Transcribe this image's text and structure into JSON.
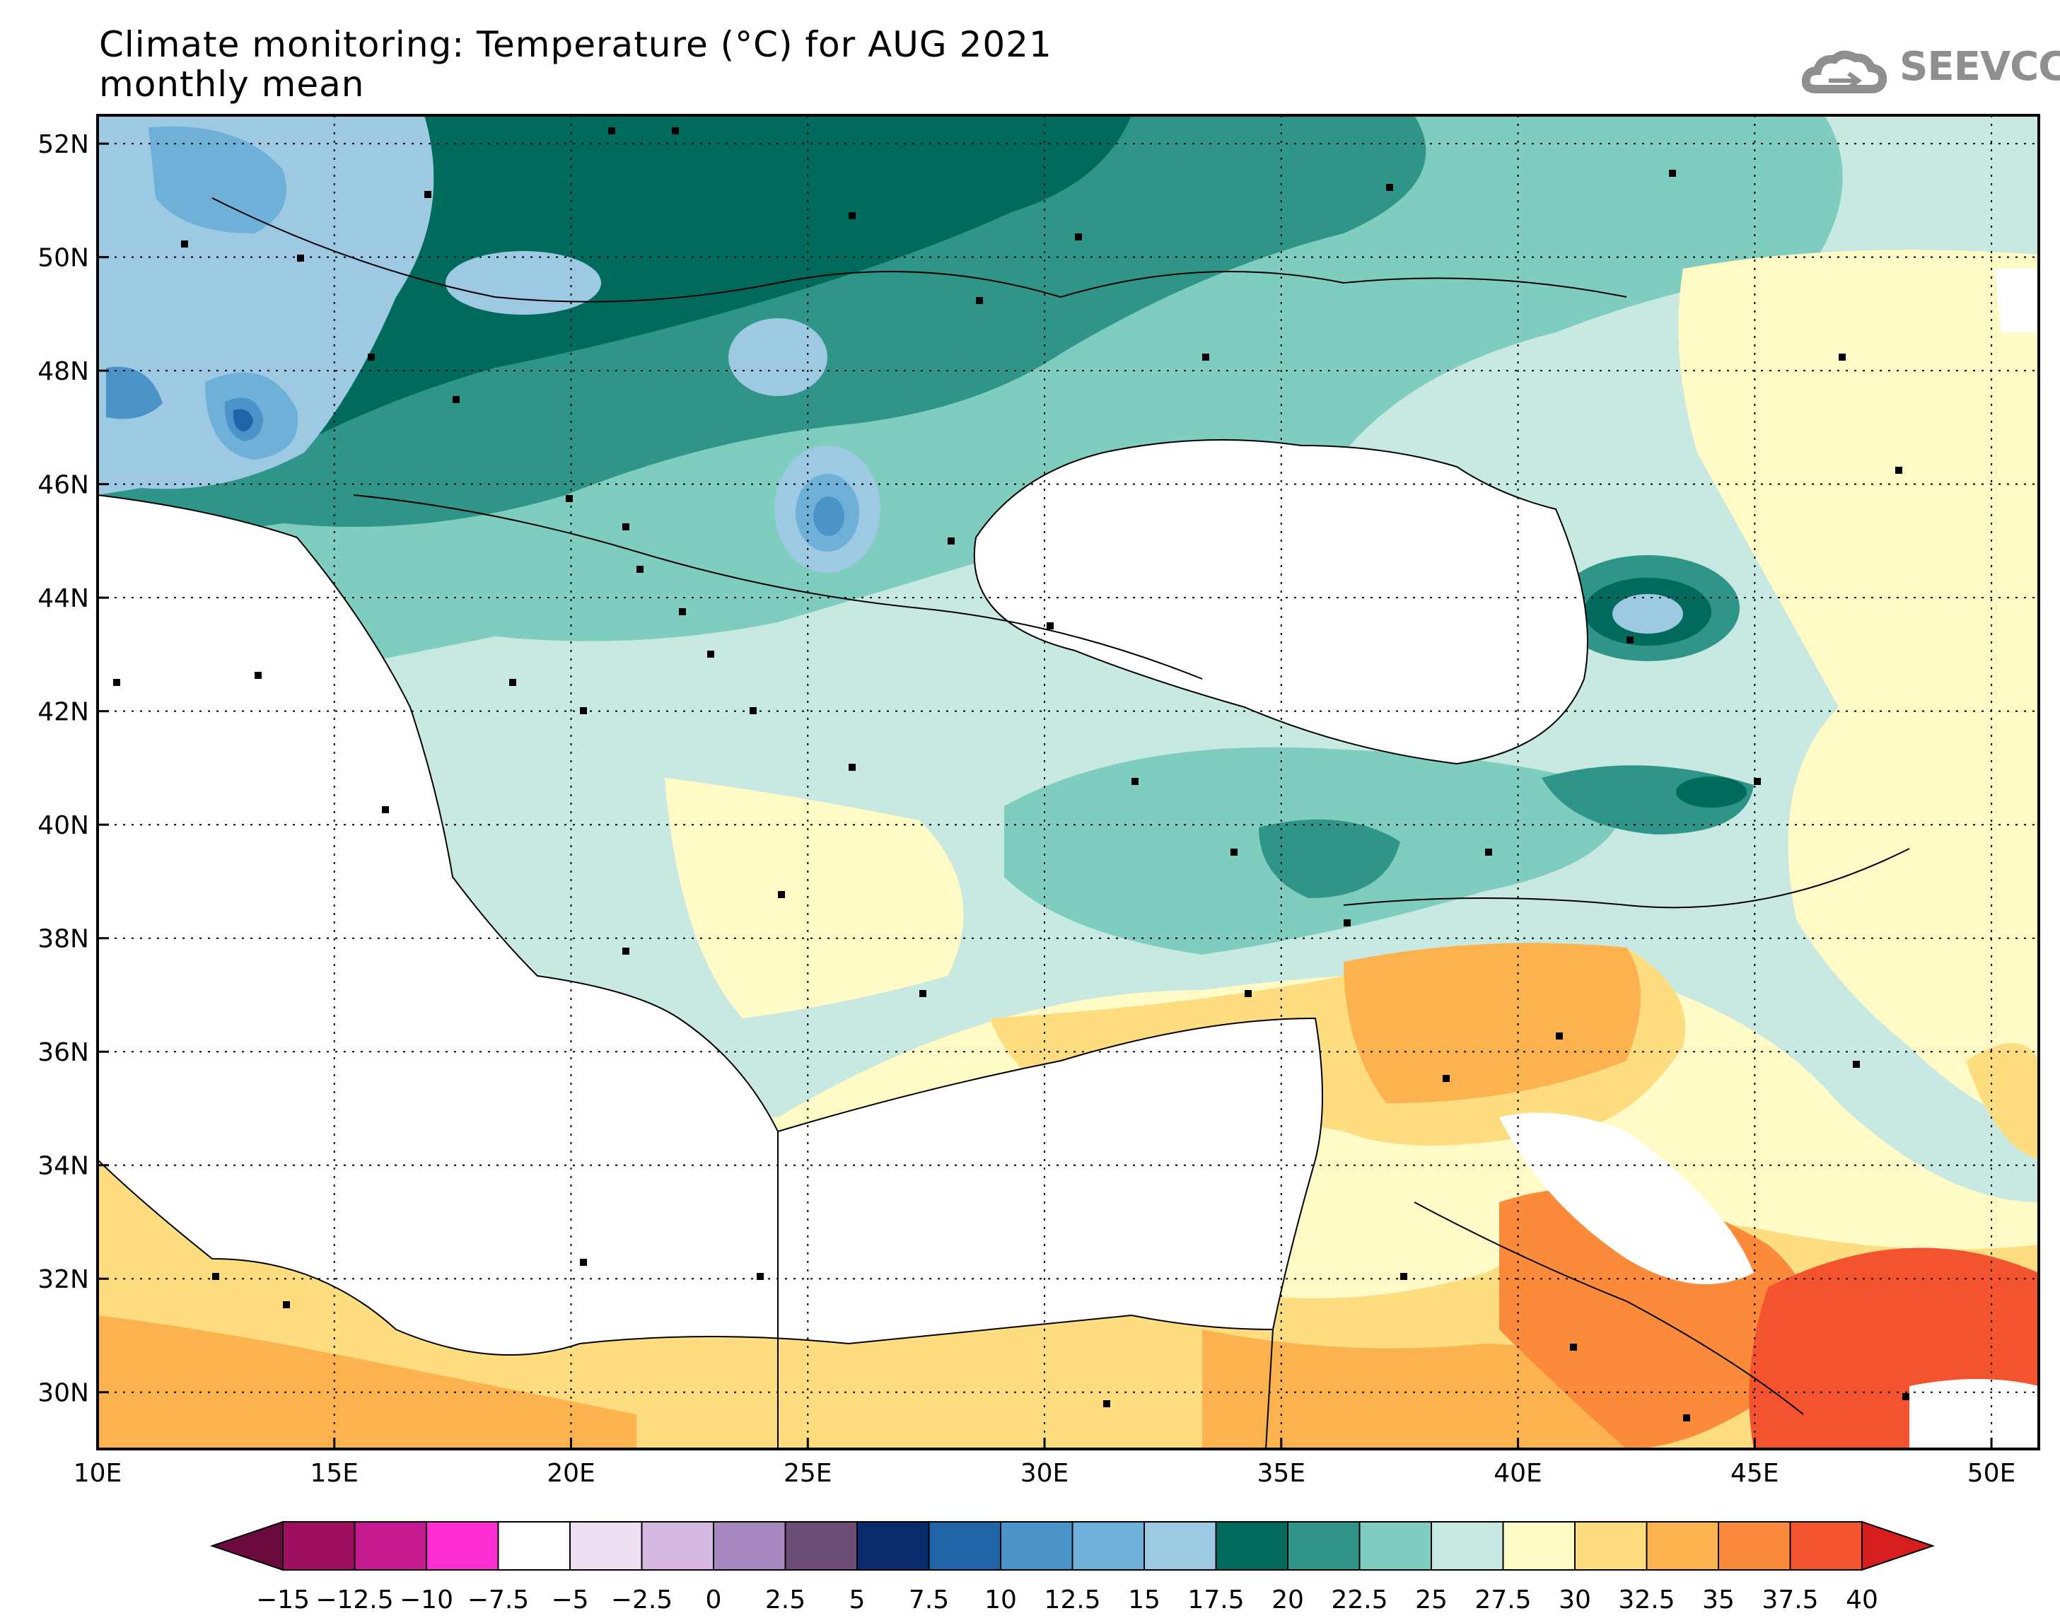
{
  "title": {
    "line1": "Climate monitoring: Temperature (°C) for AUG 2021",
    "line2": "monthly mean"
  },
  "logo": {
    "text": "SEEVCCC",
    "icon": "cloud-icon"
  },
  "map": {
    "projection": "lat-lon",
    "lon_range": [
      10,
      51
    ],
    "lat_range": [
      29,
      52.5
    ],
    "lon_ticks": [
      "10E",
      "15E",
      "20E",
      "25E",
      "30E",
      "35E",
      "40E",
      "45E",
      "50E"
    ],
    "lat_ticks": [
      "30N",
      "32N",
      "34N",
      "36N",
      "38N",
      "40N",
      "42N",
      "44N",
      "46N",
      "48N",
      "50N",
      "52N"
    ],
    "grid": "dotted",
    "background_land_fill": "#c3e6e0",
    "masked_areas_color": "#ffffff"
  },
  "colorbar": {
    "labels": [
      "−15",
      "−12.5",
      "−10",
      "−7.5",
      "−5",
      "−2.5",
      "0",
      "2.5",
      "5",
      "7.5",
      "10",
      "12.5",
      "15",
      "17.5",
      "20",
      "22.5",
      "25",
      "27.5",
      "30",
      "32.5",
      "35",
      "37.5",
      "40"
    ],
    "colors": [
      "#9e0f5f",
      "#c4198f",
      "#ff2ed2",
      "#ffffff",
      "#ede0f3",
      "#d6b8e0",
      "#a888c0",
      "#6a4c74",
      "#0a2b6b",
      "#1f64a8",
      "#4a94c9",
      "#6fb0d8",
      "#9ec9e2",
      "#006a5c",
      "#2f9589",
      "#7fcdbf",
      "#c8e9e2",
      "#fffac6",
      "#fedd81",
      "#fcb24e",
      "#fb8a3a",
      "#f4532f"
    ],
    "under_color": "#6b0a3f",
    "over_color": "#d71e1e"
  },
  "stations_marker": "square"
}
